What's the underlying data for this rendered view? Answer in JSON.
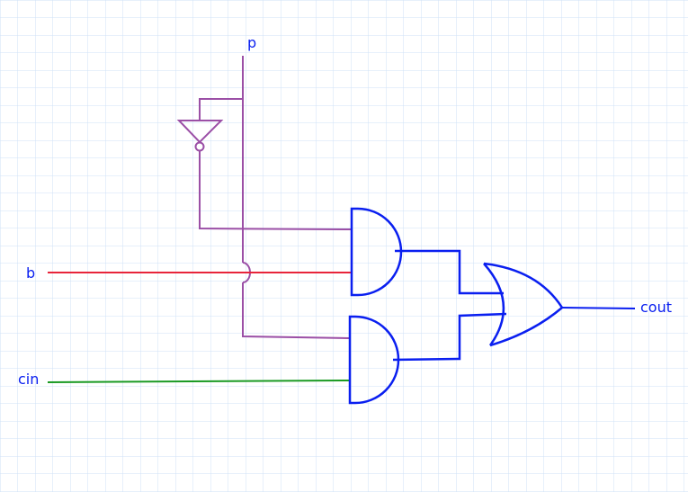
{
  "labels": {
    "p": "p",
    "b": "b",
    "cin": "cin",
    "cout": "cout"
  },
  "colors": {
    "grid": "#cfe2f7",
    "gate": "#0a1ff0",
    "wire_p": "#9b4fa6",
    "wire_b": "#e8243a",
    "wire_cin": "#1a9a22",
    "wire_out": "#0a1ff0",
    "text": "#0a1ff0"
  },
  "components": {
    "not_gate": "NOT",
    "and_gate_top": "AND",
    "and_gate_bottom": "AND",
    "or_gate": "OR"
  }
}
